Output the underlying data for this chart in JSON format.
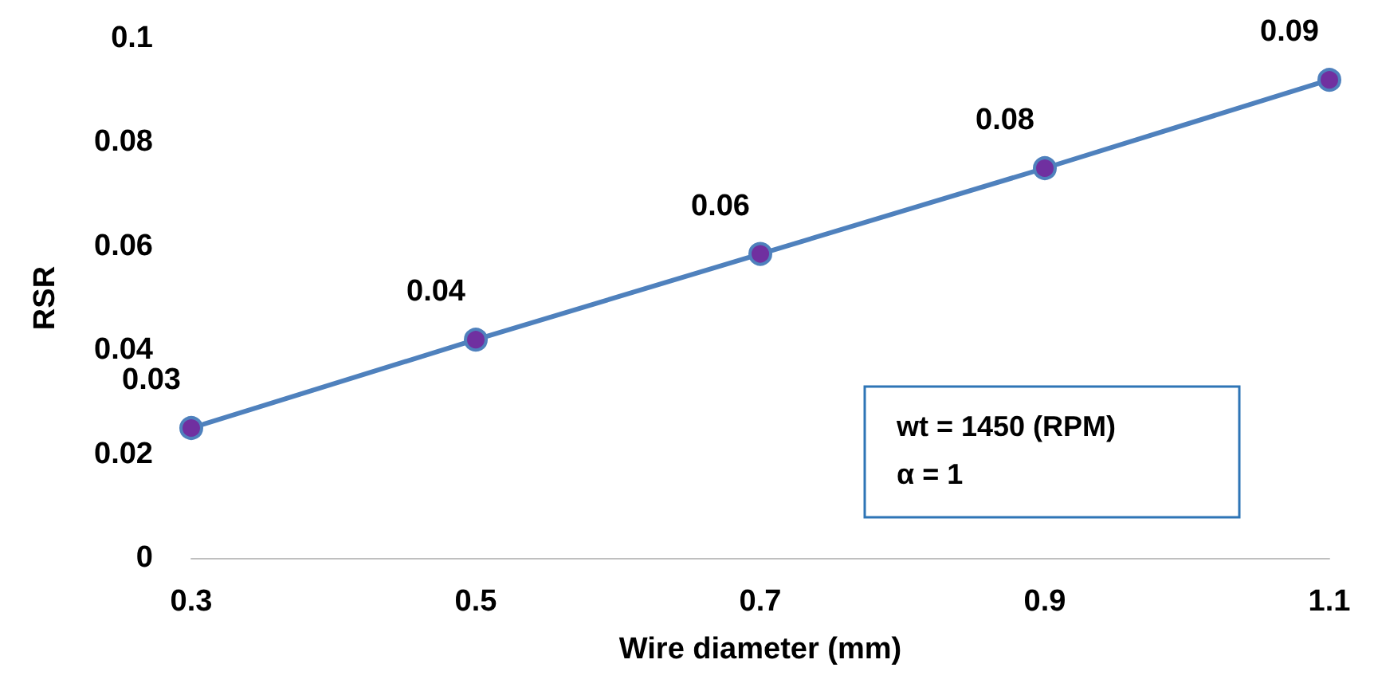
{
  "chart_data": {
    "type": "line",
    "xlabel": "Wire diameter (mm)",
    "ylabel": "RSR",
    "x": [
      0.3,
      0.5,
      0.7,
      0.9,
      1.1
    ],
    "series": [
      {
        "color": "#4f81bd",
        "values": [
          0.025,
          0.042,
          0.0585,
          0.075,
          0.092
        ],
        "value_labels": [
          "0.03",
          "0.04",
          "0.06",
          "0.08",
          "0.09"
        ]
      }
    ],
    "xlim": [
      0.3,
      1.1
    ],
    "xticks": [
      0.3,
      0.5,
      0.7,
      0.9,
      1.1
    ],
    "ylim": [
      0,
      0.1
    ],
    "yticks": [
      0,
      0.02,
      0.04,
      0.06,
      0.08,
      0.1
    ],
    "grid": false,
    "marker": "circle",
    "line_style": "solid",
    "annotations": [
      "wt = 1450 (RPM)",
      "α = 1"
    ]
  }
}
